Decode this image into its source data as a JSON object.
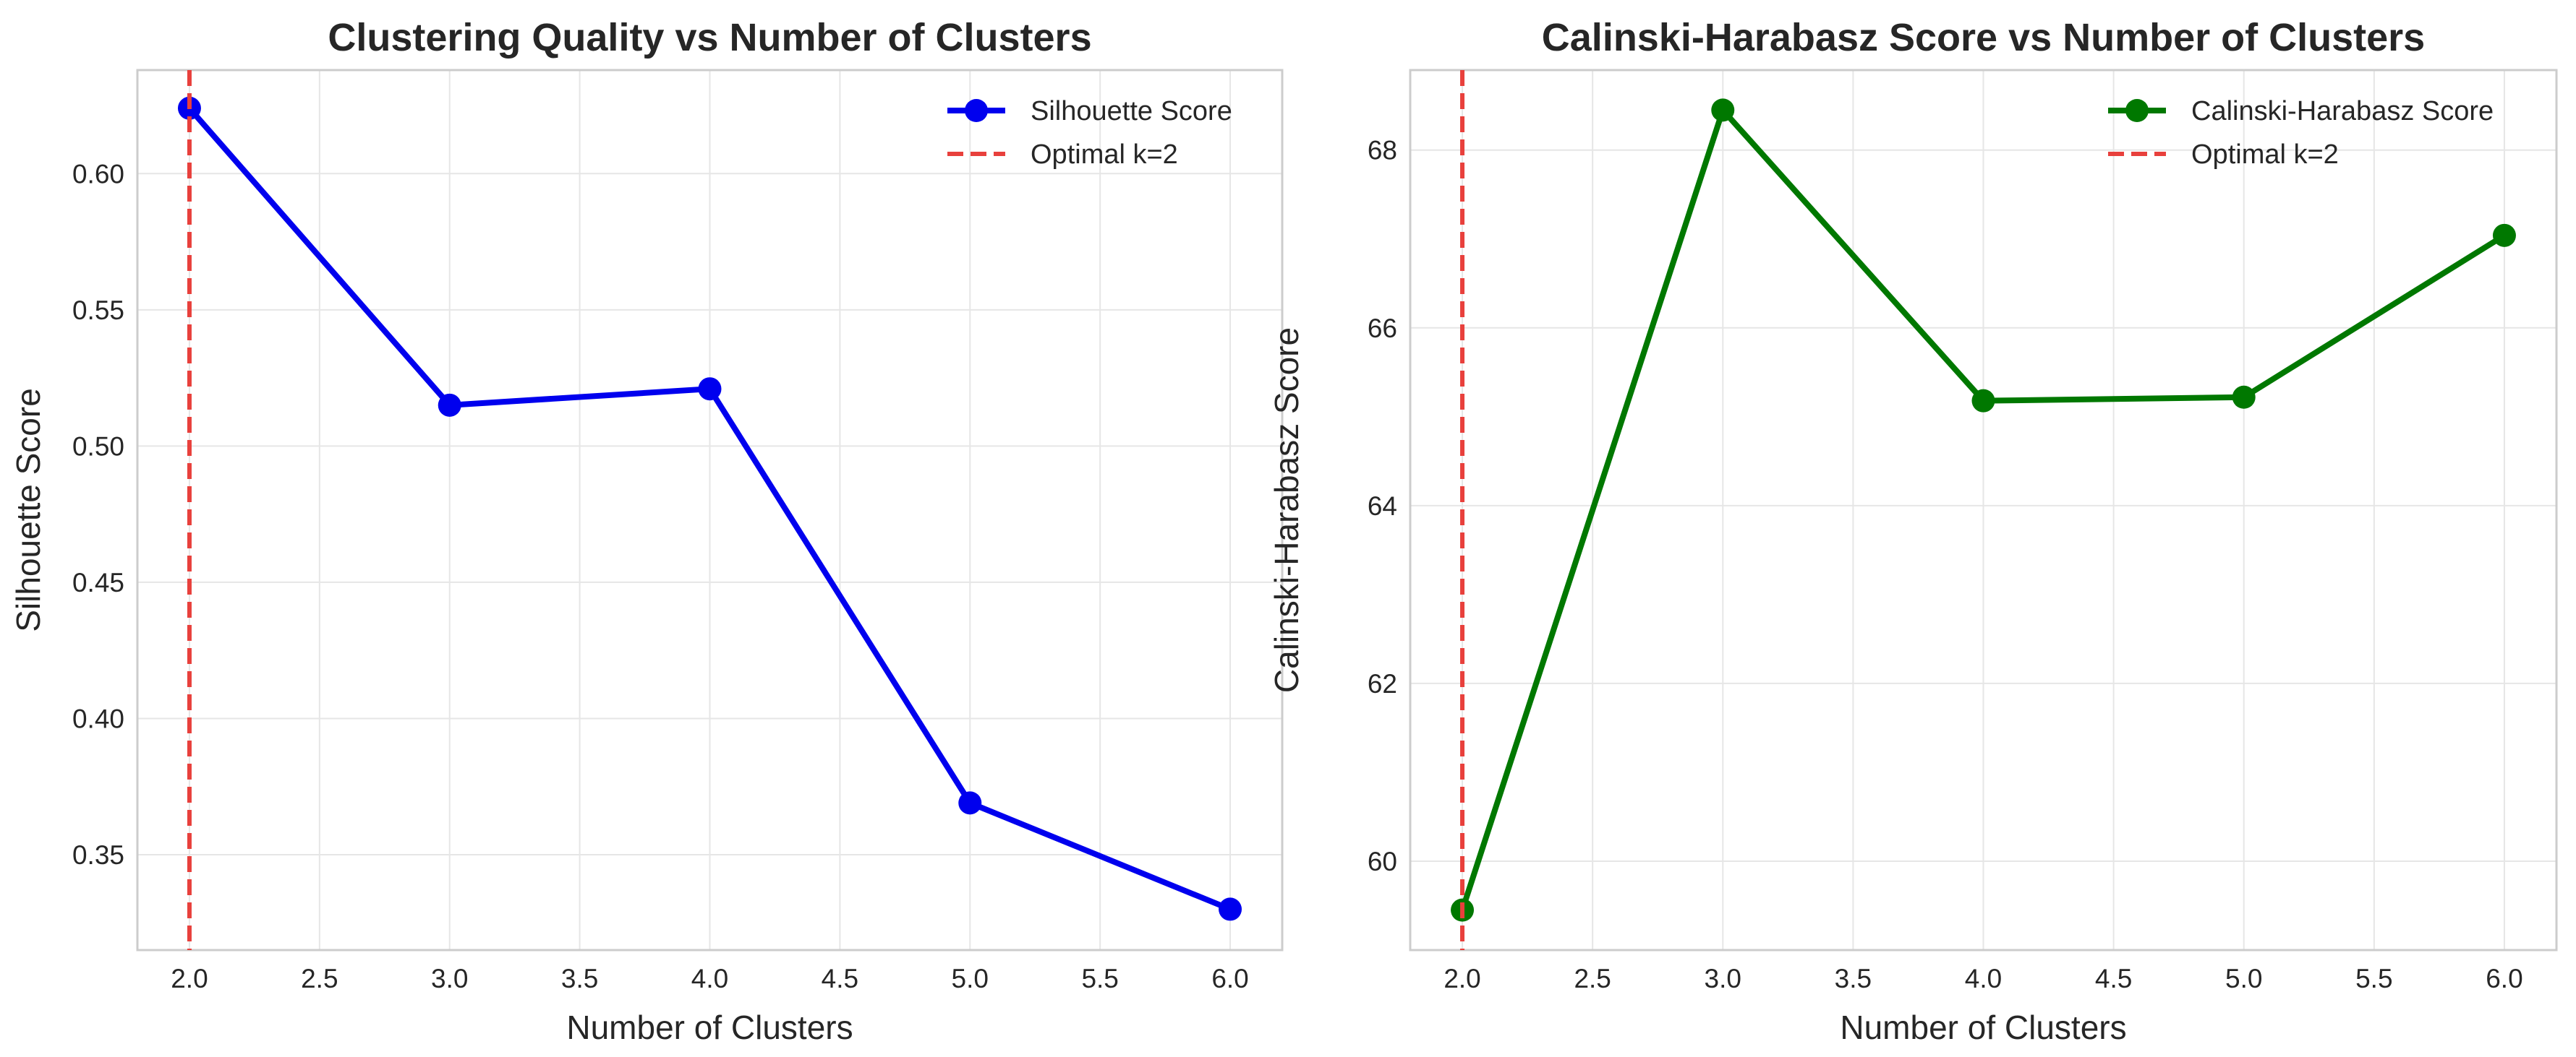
{
  "chart_data": [
    {
      "type": "line",
      "title": "Clustering Quality vs Number of Clusters",
      "xlabel": "Number of Clusters",
      "ylabel": "Silhouette Score",
      "xlim": [
        1.8,
        6.2
      ],
      "ylim": [
        0.315,
        0.638
      ],
      "xticks": [
        2.0,
        2.5,
        3.0,
        3.5,
        4.0,
        4.5,
        5.0,
        5.5,
        6.0
      ],
      "xtick_labels": [
        "2.0",
        "2.5",
        "3.0",
        "3.5",
        "4.0",
        "4.5",
        "5.0",
        "5.5",
        "6.0"
      ],
      "yticks": [
        0.35,
        0.4,
        0.45,
        0.5,
        0.55,
        0.6
      ],
      "ytick_labels": [
        "0.35",
        "0.40",
        "0.45",
        "0.50",
        "0.55",
        "0.60"
      ],
      "grid": true,
      "legend_position": "top-right",
      "series": [
        {
          "name": "Silhouette Score",
          "color": "#0000ee",
          "x": [
            2,
            3,
            4,
            5,
            6
          ],
          "values": [
            0.624,
            0.515,
            0.521,
            0.369,
            0.33
          ]
        }
      ],
      "reference_line": {
        "name": "Optimal k=2",
        "x": 2,
        "color": "#e8403c",
        "style": "dashed"
      }
    },
    {
      "type": "line",
      "title": "Calinski-Harabasz Score vs Number of Clusters",
      "xlabel": "Number of Clusters",
      "ylabel": "Calinski-Harabasz Score",
      "xlim": [
        1.8,
        6.2
      ],
      "ylim": [
        59.0,
        68.9
      ],
      "xticks": [
        2.0,
        2.5,
        3.0,
        3.5,
        4.0,
        4.5,
        5.0,
        5.5,
        6.0
      ],
      "xtick_labels": [
        "2.0",
        "2.5",
        "3.0",
        "3.5",
        "4.0",
        "4.5",
        "5.0",
        "5.5",
        "6.0"
      ],
      "yticks": [
        60,
        62,
        64,
        66,
        68
      ],
      "ytick_labels": [
        "60",
        "62",
        "64",
        "66",
        "68"
      ],
      "grid": true,
      "legend_position": "top-right",
      "series": [
        {
          "name": "Calinski-Harabasz Score",
          "color": "#007800",
          "x": [
            2,
            3,
            4,
            5,
            6
          ],
          "values": [
            59.45,
            68.45,
            65.18,
            65.22,
            67.04
          ]
        }
      ],
      "reference_line": {
        "name": "Optimal k=2",
        "x": 2,
        "color": "#e8403c",
        "style": "dashed"
      }
    }
  ]
}
